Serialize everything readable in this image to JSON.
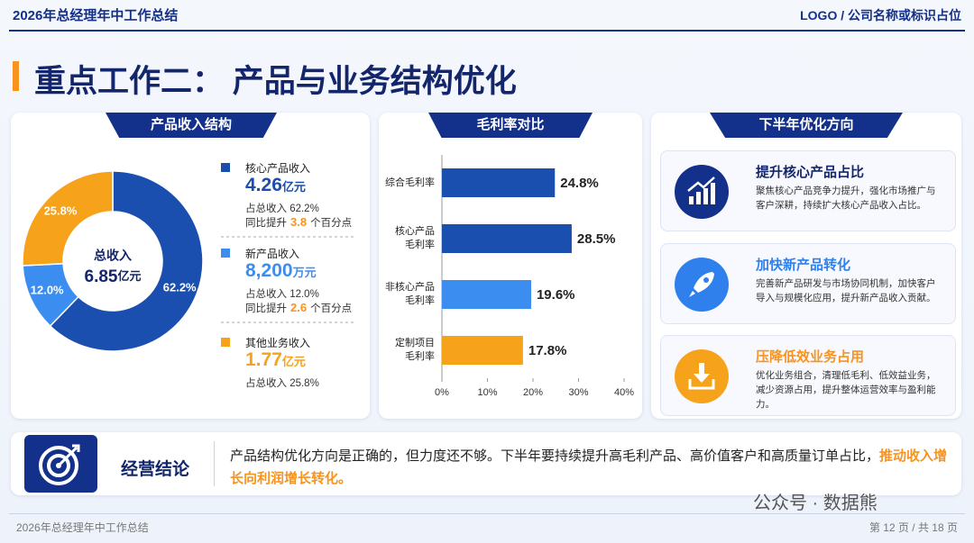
{
  "header": {
    "title": "2026年总经理年中工作总结",
    "logo": "LOGO / 公司名称或标识占位"
  },
  "section_title": "重点工作二： 产品与业务结构优化",
  "chart_data": [
    {
      "type": "pie",
      "title": "产品收入结构",
      "categories": [
        "核心产品收入",
        "新产品收入",
        "其他业务收入"
      ],
      "values": [
        62.2,
        12.0,
        25.8
      ],
      "value_labels": [
        "62.2%",
        "12.0%",
        "25.8%"
      ],
      "colors": [
        "#1a4fb0",
        "#3b8ef0",
        "#f7a21b"
      ],
      "center_label": "总收入",
      "center_value": "6.85",
      "center_unit": "亿元",
      "details": [
        {
          "amount": "4.26",
          "unit": "亿元",
          "share": "占总收入 62.2%",
          "growth_label": "同比提升",
          "growth_value": "3.8",
          "growth_unit": "个百分点"
        },
        {
          "amount": "8,200",
          "unit": "万元",
          "share": "占总收入 12.0%",
          "growth_label": "同比提升",
          "growth_value": "2.6",
          "growth_unit": "个百分点"
        },
        {
          "amount": "1.77",
          "unit": "亿元",
          "share": "占总收入 25.8%"
        }
      ]
    },
    {
      "type": "bar",
      "orientation": "horizontal",
      "title": "毛利率对比",
      "categories": [
        "综合毛利率",
        "核心产品\n毛利率",
        "非核心产品\n毛利率",
        "定制项目\n毛利率"
      ],
      "values": [
        24.8,
        28.5,
        19.6,
        17.8
      ],
      "value_labels": [
        "24.8%",
        "28.5%",
        "19.6%",
        "17.8%"
      ],
      "colors": [
        "#1a4fb0",
        "#1a4fb0",
        "#3b8ef0",
        "#f7a21b"
      ],
      "xlim": [
        0,
        40
      ],
      "xticks": [
        {
          "value": 0,
          "label": "0%"
        },
        {
          "value": 10,
          "label": "10%"
        },
        {
          "value": 20,
          "label": "20%"
        },
        {
          "value": 30,
          "label": "30%"
        },
        {
          "value": 40,
          "label": "40%"
        }
      ]
    }
  ],
  "directions": {
    "title": "下半年优化方向",
    "items": [
      {
        "title": "提升核心产品占比",
        "text": "聚焦核心产品竞争力提升，强化市场推广与客户深耕，持续扩大核心产品收入占比。"
      },
      {
        "title": "加快新产品转化",
        "text": "完善新产品研发与市场协同机制，加快客户导入与规模化应用，提升新产品收入贡献。"
      },
      {
        "title": "压降低效业务占用",
        "text": "优化业务组合，清理低毛利、低效益业务，减少资源占用，提升整体运营效率与盈利能力。"
      }
    ]
  },
  "conclusion": {
    "label": "经营结论",
    "text": "产品结构优化方向是正确的，但力度还不够。下半年要持续提升高毛利产品、高价值客户和高质量订单占比，",
    "highlight": "推动收入增长向利润增长转化。"
  },
  "watermark": "公众号 · 数据熊",
  "footer": {
    "left": "2026年总经理年中工作总结",
    "page": "第 12 页 / 共 18 页"
  }
}
